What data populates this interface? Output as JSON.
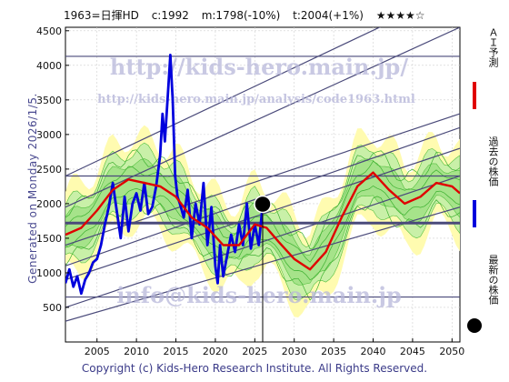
{
  "header": {
    "code_name": "1963=日揮HD",
    "current": "c:1992",
    "median": "m:1798(-10%)",
    "target": "t:2004(+1%)",
    "stars": "★★★★☆"
  },
  "side_label": "Generated on Monday 2026/1/5.",
  "footer": "Copyright (c) Kids-Hero Research Institute. All Rights Reserved.",
  "watermarks": {
    "url": "http://kids-hero.main.jp/",
    "url_long": "http://kids-hero.main.jp/analysis/code1963.html",
    "email": "info@kids-hero.main.jp"
  },
  "legend": [
    {
      "label": "ＡＩ予測",
      "color": "#e00000"
    },
    {
      "label": "過去の株価",
      "color": "#0000dd"
    },
    {
      "label": "最新の株価",
      "color": "#000000"
    }
  ],
  "chart_data": {
    "type": "line",
    "xlim": [
      2001,
      2051
    ],
    "ylim": [
      0,
      4550
    ],
    "x_ticks": [
      2005,
      2010,
      2015,
      2020,
      2025,
      2030,
      2035,
      2040,
      2045,
      2050
    ],
    "y_ticks": [
      500,
      1000,
      1500,
      2000,
      2500,
      3000,
      3500,
      4000,
      4500
    ],
    "grid": true,
    "series": [
      {
        "name": "過去の株価",
        "color": "#0000dd",
        "x": [
          2001,
          2001.5,
          2002,
          2002.5,
          2003,
          2003.5,
          2004,
          2004.5,
          2005,
          2005.5,
          2006,
          2006.5,
          2007,
          2007.5,
          2008,
          2008.5,
          2009,
          2009.5,
          2010,
          2010.5,
          2011,
          2011.5,
          2012,
          2012.5,
          2013,
          2013.3,
          2013.6,
          2014,
          2014.3,
          2014.6,
          2014.9,
          2015.2,
          2015.5,
          2016,
          2016.5,
          2017,
          2017.5,
          2018,
          2018.5,
          2019,
          2019.5,
          2020,
          2020.3,
          2020.6,
          2021,
          2021.5,
          2022,
          2022.5,
          2023,
          2023.5,
          2024,
          2024.5,
          2025,
          2025.5,
          2026
        ],
        "values": [
          850,
          1050,
          800,
          950,
          700,
          900,
          1000,
          1150,
          1200,
          1400,
          1700,
          1950,
          2300,
          1900,
          1500,
          2100,
          1600,
          2000,
          2150,
          1900,
          2300,
          1850,
          1950,
          2250,
          2700,
          3300,
          2900,
          3600,
          4150,
          3500,
          2400,
          2100,
          2000,
          1800,
          2200,
          1500,
          2000,
          1700,
          2300,
          1400,
          1950,
          1100,
          850,
          1400,
          950,
          1250,
          1550,
          1300,
          1700,
          1400,
          2000,
          1350,
          1700,
          1400,
          1992
        ]
      },
      {
        "name": "ＡＩ予測",
        "color": "#e00000",
        "x": [
          2001,
          2003,
          2005,
          2007,
          2009,
          2011,
          2013,
          2015,
          2017,
          2019,
          2021,
          2023,
          2025,
          2026.5,
          2028,
          2030,
          2032,
          2034,
          2036,
          2038,
          2040,
          2042,
          2044,
          2046,
          2048,
          2050,
          2051
        ],
        "values": [
          1550,
          1650,
          1900,
          2200,
          2350,
          2300,
          2250,
          2100,
          1800,
          1650,
          1400,
          1400,
          1700,
          1650,
          1450,
          1200,
          1050,
          1300,
          1800,
          2250,
          2450,
          2200,
          2000,
          2100,
          2300,
          2250,
          2150
        ]
      }
    ],
    "latest_point": {
      "x": 2026,
      "y": 1992
    }
  }
}
